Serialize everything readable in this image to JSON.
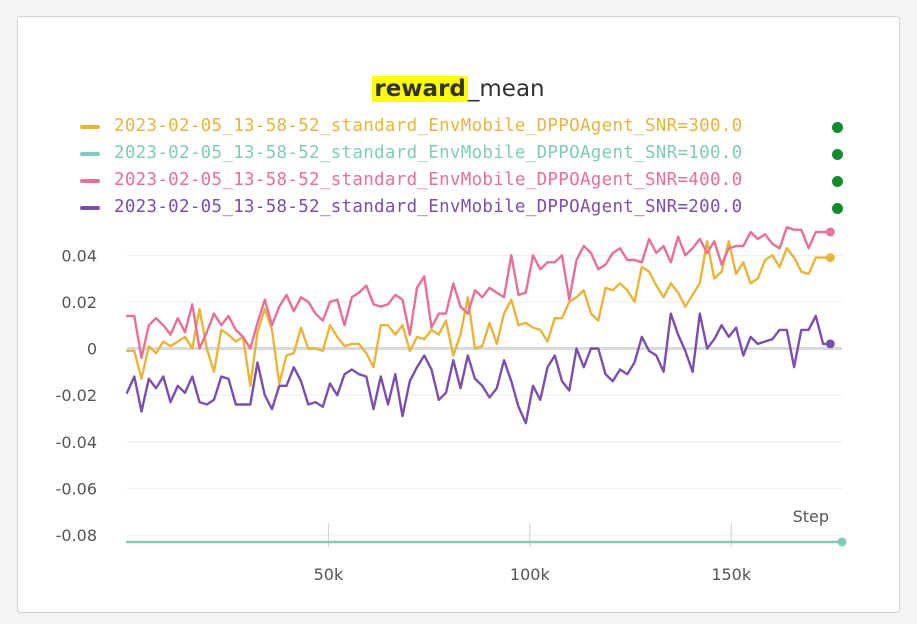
{
  "title": {
    "highlight": "reward",
    "rest": "_mean"
  },
  "legend": [
    {
      "label": "2023-02-05_13-58-52_standard_EnvMobile_DPPOAgent_SNR=300.0",
      "color": "#e8b53a"
    },
    {
      "label": "2023-02-05_13-58-52_standard_EnvMobile_DPPOAgent_SNR=100.0",
      "color": "#7fcdb8"
    },
    {
      "label": "2023-02-05_13-58-52_standard_EnvMobile_DPPOAgent_SNR=400.0",
      "color": "#e86f9a"
    },
    {
      "label": "2023-02-05_13-58-52_standard_EnvMobile_DPPOAgent_SNR=200.0",
      "color": "#7b4fae"
    }
  ],
  "chart_data": {
    "type": "line",
    "title": "reward_mean",
    "xlabel": "Step",
    "ylabel": "",
    "xlim": [
      0,
      177500
    ],
    "ylim": [
      -0.08,
      0.05
    ],
    "x_ticks": [
      50000,
      100000,
      150000
    ],
    "x_tick_labels": [
      "50k",
      "100k",
      "150k"
    ],
    "y_ticks": [
      0.04,
      0.02,
      0,
      -0.02,
      -0.04,
      -0.06,
      -0.08
    ],
    "y_tick_labels": [
      "0.04",
      "0.02",
      "0",
      "-0.02",
      "-0.04",
      "-0.06",
      "-0.08"
    ],
    "grid": true,
    "legend_position": "top-left",
    "x": [
      0,
      1800,
      3600,
      5400,
      7200,
      9000,
      10800,
      12600,
      14400,
      16200,
      18000,
      19800,
      21600,
      23400,
      25200,
      27000,
      28800,
      30600,
      32400,
      34200,
      36000,
      37800,
      39600,
      41400,
      43200,
      45000,
      46800,
      48600,
      50400,
      52200,
      54000,
      55800,
      57600,
      59400,
      61200,
      63000,
      64800,
      66600,
      68400,
      70200,
      72000,
      73800,
      75600,
      77400,
      79200,
      81000,
      82800,
      84600,
      86400,
      88200,
      90000,
      91800,
      93600,
      95400,
      97200,
      99000,
      100800,
      102600,
      104400,
      106200,
      108000,
      109800,
      111600,
      113400,
      115200,
      117000,
      118800,
      120600,
      122400,
      124200,
      126000,
      127800,
      129600,
      131400,
      133200,
      135000,
      136800,
      138600,
      140400,
      142200,
      144000,
      145800,
      147600,
      149400,
      151200,
      153000,
      154800,
      156600,
      158400,
      160200,
      162000,
      163800,
      165600,
      167400,
      169200,
      171000,
      172800,
      174600
    ],
    "series": [
      {
        "name": "2023-02-05_13-58-52_standard_EnvMobile_DPPOAgent_SNR=300.0",
        "color": "#e8b53a",
        "values": [
          -0.001,
          -0.001,
          -0.013,
          0.001,
          -0.002,
          0.003,
          0.001,
          0.003,
          0.005,
          0.0,
          0.017,
          0.0,
          -0.01,
          0.008,
          0.006,
          0.003,
          0.005,
          -0.016,
          0.007,
          0.017,
          0.008,
          -0.015,
          -0.003,
          -0.002,
          0.009,
          0.0,
          0.0,
          -0.001,
          0.01,
          0.005,
          0.001,
          0.002,
          0.002,
          -0.002,
          -0.008,
          0.01,
          0.01,
          0.006,
          0.01,
          -0.001,
          0.005,
          0.004,
          0.008,
          0.006,
          0.012,
          -0.003,
          0.006,
          0.022,
          0.0,
          0.001,
          0.011,
          0.002,
          0.015,
          0.021,
          0.01,
          0.011,
          0.009,
          0.008,
          0.003,
          0.013,
          0.013,
          0.02,
          0.022,
          0.025,
          0.015,
          0.012,
          0.026,
          0.025,
          0.028,
          0.025,
          0.02,
          0.035,
          0.033,
          0.027,
          0.022,
          0.028,
          0.024,
          0.018,
          0.023,
          0.028,
          0.046,
          0.03,
          0.033,
          0.046,
          0.032,
          0.037,
          0.028,
          0.03,
          0.038,
          0.04,
          0.035,
          0.043,
          0.039,
          0.033,
          0.032,
          0.039,
          0.039,
          0.039
        ]
      },
      {
        "name": "2023-02-05_13-58-52_standard_EnvMobile_DPPOAgent_SNR=400.0",
        "color": "#e86f9a",
        "values": [
          0.014,
          0.014,
          -0.004,
          0.01,
          0.013,
          0.01,
          0.006,
          0.013,
          0.007,
          0.019,
          0.0,
          0.007,
          0.015,
          0.01,
          0.014,
          0.008,
          0.005,
          0.0,
          0.011,
          0.021,
          0.01,
          0.018,
          0.023,
          0.016,
          0.022,
          0.02,
          0.015,
          0.012,
          0.02,
          0.021,
          0.01,
          0.022,
          0.024,
          0.027,
          0.019,
          0.018,
          0.019,
          0.023,
          0.021,
          0.006,
          0.026,
          0.031,
          0.009,
          0.015,
          0.015,
          0.028,
          0.018,
          0.015,
          0.025,
          0.022,
          0.026,
          0.024,
          0.022,
          0.04,
          0.023,
          0.024,
          0.04,
          0.034,
          0.037,
          0.037,
          0.04,
          0.021,
          0.038,
          0.044,
          0.041,
          0.034,
          0.036,
          0.041,
          0.043,
          0.038,
          0.038,
          0.037,
          0.047,
          0.041,
          0.044,
          0.037,
          0.048,
          0.04,
          0.043,
          0.047,
          0.041,
          0.046,
          0.036,
          0.043,
          0.044,
          0.044,
          0.05,
          0.047,
          0.049,
          0.045,
          0.043,
          0.052,
          0.051,
          0.051,
          0.043,
          0.05,
          0.05,
          0.05
        ]
      },
      {
        "name": "2023-02-05_13-58-52_standard_EnvMobile_DPPOAgent_SNR=200.0",
        "color": "#7b4fae",
        "values": [
          -0.019,
          -0.012,
          -0.027,
          -0.013,
          -0.017,
          -0.012,
          -0.023,
          -0.016,
          -0.019,
          -0.012,
          -0.023,
          -0.024,
          -0.022,
          -0.012,
          -0.013,
          -0.024,
          -0.024,
          -0.024,
          -0.006,
          -0.02,
          -0.026,
          -0.016,
          -0.016,
          -0.008,
          -0.014,
          -0.024,
          -0.023,
          -0.025,
          -0.015,
          -0.02,
          -0.011,
          -0.009,
          -0.011,
          -0.012,
          -0.026,
          -0.012,
          -0.024,
          -0.011,
          -0.029,
          -0.014,
          -0.008,
          -0.003,
          -0.009,
          -0.022,
          -0.019,
          -0.005,
          -0.017,
          -0.003,
          -0.013,
          -0.016,
          -0.021,
          -0.017,
          -0.005,
          -0.014,
          -0.025,
          -0.032,
          -0.016,
          -0.022,
          -0.008,
          -0.003,
          -0.014,
          -0.018,
          0.0,
          -0.008,
          0.0,
          0.0,
          -0.011,
          -0.014,
          -0.009,
          -0.011,
          -0.006,
          0.005,
          -0.001,
          -0.003,
          -0.01,
          0.015,
          0.006,
          -0.001,
          -0.01,
          0.015,
          0.0,
          0.004,
          0.01,
          0.005,
          0.009,
          -0.003,
          0.005,
          0.002,
          0.003,
          0.004,
          0.008,
          0.008,
          -0.008,
          0.008,
          0.008,
          0.014,
          0.002,
          0.002
        ]
      },
      {
        "name": "2023-02-05_13-58-52_standard_EnvMobile_DPPOAgent_SNR=100.0",
        "color": "#7fcdb8",
        "x": [
          0,
          177500
        ],
        "values": [
          -0.083,
          -0.083
        ]
      }
    ]
  }
}
